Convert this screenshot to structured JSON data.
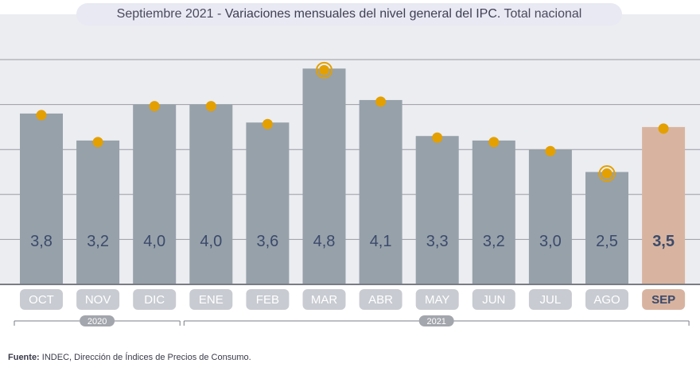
{
  "chart_data": {
    "type": "bar",
    "title_prefix": "Septiembre 2021 - ",
    "title_main": "Variaciones mensuales del nivel general del IPC.",
    "title_suffix": " Total nacional",
    "categories": [
      "OCT",
      "NOV",
      "DIC",
      "ENE",
      "FEB",
      "MAR",
      "ABR",
      "MAY",
      "JUN",
      "JUL",
      "AGO",
      "SEP"
    ],
    "values": [
      3.8,
      3.2,
      4.0,
      4.0,
      3.6,
      4.8,
      4.1,
      3.3,
      3.2,
      3.0,
      2.5,
      3.5
    ],
    "value_labels": [
      "3,8",
      "3,2",
      "4,0",
      "4,0",
      "3,6",
      "4,8",
      "4,1",
      "3,3",
      "3,2",
      "3,0",
      "2,5",
      "3,5"
    ],
    "highlighted_category": "SEP",
    "circled_categories": [
      "MAR",
      "AGO"
    ],
    "year_groups": [
      {
        "label": "2020",
        "from": "OCT",
        "to": "DIC"
      },
      {
        "label": "2021",
        "from": "ENE",
        "to": "SEP"
      }
    ],
    "ylim": [
      0,
      5
    ],
    "grid": true,
    "colors": {
      "bar": "#97a1aa",
      "bar_highlight": "#d8b4a0",
      "dot": "#e3a000",
      "value_text": "#3b4a6b",
      "category_pill": "#c8cbd1",
      "category_pill_highlight": "#d8b4a0",
      "category_text": "#ffffff",
      "category_text_highlight": "#3b4a6b",
      "panel": "#ecedf1",
      "gridline": "#9a9ca4",
      "year_pill": "#a3a6ad"
    }
  },
  "source": {
    "label": "Fuente:",
    "text": " INDEC, Dirección de Índices de Precios de Consumo."
  }
}
